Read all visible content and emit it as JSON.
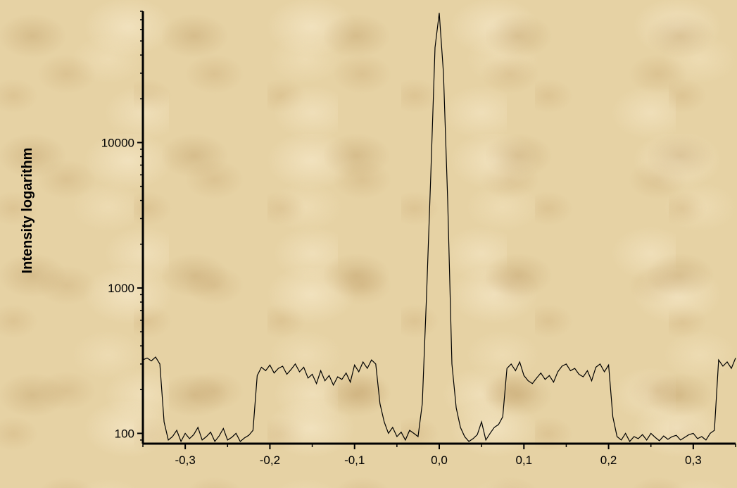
{
  "chart_data": {
    "type": "line",
    "title": "",
    "xlabel": "",
    "ylabel": "Intensity logarithm",
    "y_scale": "log",
    "xlim": [
      -0.35,
      0.35
    ],
    "ylim": [
      85,
      80000
    ],
    "x_ticks": [
      -0.3,
      -0.2,
      -0.1,
      0.0,
      0.1,
      0.2,
      0.3
    ],
    "x_tick_labels": [
      "-0,3",
      "-0,2",
      "-0,1",
      "0,0",
      "0,1",
      "0,2",
      "0,3"
    ],
    "y_ticks": [
      100,
      1000,
      10000
    ],
    "y_tick_labels": [
      "100",
      "1000",
      "10000"
    ],
    "grid": false,
    "line_color": "#000000",
    "series": [
      {
        "x": [
          -0.35,
          -0.345,
          -0.34,
          -0.335,
          -0.33,
          -0.325,
          -0.32,
          -0.315,
          -0.31,
          -0.305,
          -0.3,
          -0.295,
          -0.29,
          -0.285,
          -0.28,
          -0.275,
          -0.27,
          -0.265,
          -0.26,
          -0.255,
          -0.25,
          -0.245,
          -0.24,
          -0.235,
          -0.23,
          -0.225,
          -0.22,
          -0.215,
          -0.21,
          -0.205,
          -0.2,
          -0.195,
          -0.19,
          -0.185,
          -0.18,
          -0.175,
          -0.17,
          -0.165,
          -0.16,
          -0.155,
          -0.15,
          -0.145,
          -0.14,
          -0.135,
          -0.13,
          -0.125,
          -0.12,
          -0.115,
          -0.11,
          -0.105,
          -0.1,
          -0.095,
          -0.09,
          -0.085,
          -0.08,
          -0.075,
          -0.07,
          -0.065,
          -0.06,
          -0.055,
          -0.05,
          -0.045,
          -0.04,
          -0.035,
          -0.03,
          -0.025,
          -0.02,
          -0.015,
          -0.01,
          -0.005,
          0.0,
          0.005,
          0.01,
          0.015,
          0.02,
          0.025,
          0.03,
          0.035,
          0.04,
          0.045,
          0.05,
          0.055,
          0.06,
          0.065,
          0.07,
          0.075,
          0.08,
          0.085,
          0.09,
          0.095,
          0.1,
          0.105,
          0.11,
          0.115,
          0.12,
          0.125,
          0.13,
          0.135,
          0.14,
          0.145,
          0.15,
          0.155,
          0.16,
          0.165,
          0.17,
          0.175,
          0.18,
          0.185,
          0.19,
          0.195,
          0.2,
          0.205,
          0.21,
          0.215,
          0.22,
          0.225,
          0.23,
          0.235,
          0.24,
          0.245,
          0.25,
          0.255,
          0.26,
          0.265,
          0.27,
          0.275,
          0.28,
          0.285,
          0.29,
          0.295,
          0.3,
          0.305,
          0.31,
          0.315,
          0.32,
          0.325,
          0.33,
          0.335,
          0.34,
          0.345,
          0.35
        ],
        "y": [
          320,
          330,
          315,
          335,
          300,
          120,
          90,
          95,
          105,
          88,
          100,
          92,
          98,
          110,
          90,
          95,
          102,
          88,
          96,
          108,
          90,
          94,
          100,
          88,
          93,
          97,
          105,
          250,
          285,
          270,
          295,
          260,
          280,
          290,
          255,
          275,
          300,
          265,
          285,
          240,
          255,
          220,
          270,
          230,
          250,
          215,
          245,
          235,
          260,
          225,
          295,
          265,
          310,
          280,
          320,
          300,
          160,
          120,
          100,
          110,
          95,
          102,
          90,
          105,
          100,
          95,
          160,
          900,
          6000,
          45000,
          78000,
          30000,
          4000,
          300,
          150,
          110,
          95,
          88,
          92,
          98,
          120,
          90,
          100,
          110,
          115,
          130,
          280,
          300,
          270,
          310,
          250,
          230,
          220,
          240,
          260,
          235,
          250,
          225,
          265,
          290,
          300,
          270,
          280,
          255,
          245,
          270,
          230,
          285,
          300,
          265,
          295,
          130,
          95,
          90,
          100,
          88,
          95,
          92,
          98,
          90,
          100,
          94,
          89,
          96,
          91,
          95,
          97,
          90,
          94,
          98,
          100,
          92,
          95,
          90,
          100,
          105,
          320,
          290,
          310,
          280,
          330
        ]
      }
    ]
  }
}
